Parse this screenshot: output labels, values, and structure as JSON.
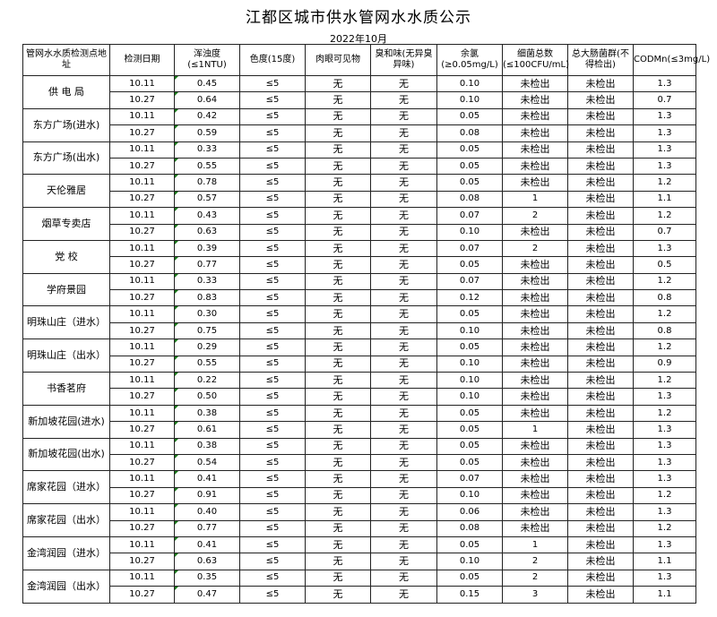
{
  "title": "江都区城市供水管网水水质公示",
  "subtitle": "2022年10月",
  "headers": [
    "管网水水质检测点地址",
    "检测日期",
    "浑浊度(≤1NTU)",
    "色度(15度)",
    "肉眼可见物",
    "臭和味(无异臭异味)",
    "余氯(≥0.05mg/L)",
    "细菌总数(≤100CFU/mL)",
    "总大肠菌群(不得检出)",
    "CODMn(≤3mg/L)"
  ],
  "indicator_color": "#1a7a1a",
  "sites": [
    {
      "name": "供 电 局",
      "rows": [
        [
          "10.11",
          "0.45",
          "≤5",
          "无",
          "无",
          "0.10",
          "未检出",
          "未检出",
          "1.3"
        ],
        [
          "10.27",
          "0.64",
          "≤5",
          "无",
          "无",
          "0.10",
          "未检出",
          "未检出",
          "0.7"
        ]
      ]
    },
    {
      "name": "东方广场(进水)",
      "rows": [
        [
          "10.11",
          "0.42",
          "≤5",
          "无",
          "无",
          "0.05",
          "未检出",
          "未检出",
          "1.3"
        ],
        [
          "10.27",
          "0.59",
          "≤5",
          "无",
          "无",
          "0.08",
          "未检出",
          "未检出",
          "1.3"
        ]
      ]
    },
    {
      "name": "东方广场(出水)",
      "rows": [
        [
          "10.11",
          "0.33",
          "≤5",
          "无",
          "无",
          "0.05",
          "未检出",
          "未检出",
          "1.3"
        ],
        [
          "10.27",
          "0.55",
          "≤5",
          "无",
          "无",
          "0.05",
          "未检出",
          "未检出",
          "1.3"
        ]
      ]
    },
    {
      "name": "天伦雅居",
      "rows": [
        [
          "10.11",
          "0.78",
          "≤5",
          "无",
          "无",
          "0.05",
          "未检出",
          "未检出",
          "1.2"
        ],
        [
          "10.27",
          "0.57",
          "≤5",
          "无",
          "无",
          "0.08",
          "1",
          "未检出",
          "1.1"
        ]
      ]
    },
    {
      "name": "烟草专卖店",
      "rows": [
        [
          "10.11",
          "0.43",
          "≤5",
          "无",
          "无",
          "0.07",
          "2",
          "未检出",
          "1.2"
        ],
        [
          "10.27",
          "0.63",
          "≤5",
          "无",
          "无",
          "0.10",
          "未检出",
          "未检出",
          "0.7"
        ]
      ]
    },
    {
      "name": "党  校",
      "rows": [
        [
          "10.11",
          "0.39",
          "≤5",
          "无",
          "无",
          "0.07",
          "2",
          "未检出",
          "1.3"
        ],
        [
          "10.27",
          "0.77",
          "≤5",
          "无",
          "无",
          "0.05",
          "未检出",
          "未检出",
          "0.5"
        ]
      ]
    },
    {
      "name": "学府景园",
      "rows": [
        [
          "10.11",
          "0.33",
          "≤5",
          "无",
          "无",
          "0.07",
          "未检出",
          "未检出",
          "1.2"
        ],
        [
          "10.27",
          "0.83",
          "≤5",
          "无",
          "无",
          "0.12",
          "未检出",
          "未检出",
          "0.8"
        ]
      ]
    },
    {
      "name": "明珠山庄（进水）",
      "rows": [
        [
          "10.11",
          "0.30",
          "≤5",
          "无",
          "无",
          "0.05",
          "未检出",
          "未检出",
          "1.2"
        ],
        [
          "10.27",
          "0.75",
          "≤5",
          "无",
          "无",
          "0.10",
          "未检出",
          "未检出",
          "0.8"
        ]
      ]
    },
    {
      "name": "明珠山庄（出水）",
      "rows": [
        [
          "10.11",
          "0.29",
          "≤5",
          "无",
          "无",
          "0.05",
          "未检出",
          "未检出",
          "1.2"
        ],
        [
          "10.27",
          "0.55",
          "≤5",
          "无",
          "无",
          "0.10",
          "未检出",
          "未检出",
          "0.9"
        ]
      ]
    },
    {
      "name": "书香茗府",
      "rows": [
        [
          "10.11",
          "0.22",
          "≤5",
          "无",
          "无",
          "0.10",
          "未检出",
          "未检出",
          "1.2"
        ],
        [
          "10.27",
          "0.50",
          "≤5",
          "无",
          "无",
          "0.10",
          "未检出",
          "未检出",
          "1.3"
        ]
      ]
    },
    {
      "name": "新加坡花园(进水)",
      "rows": [
        [
          "10.11",
          "0.38",
          "≤5",
          "无",
          "无",
          "0.05",
          "未检出",
          "未检出",
          "1.2"
        ],
        [
          "10.27",
          "0.61",
          "≤5",
          "无",
          "无",
          "0.05",
          "1",
          "未检出",
          "1.3"
        ]
      ]
    },
    {
      "name": "新加坡花园(出水)",
      "rows": [
        [
          "10.11",
          "0.38",
          "≤5",
          "无",
          "无",
          "0.05",
          "未检出",
          "未检出",
          "1.3"
        ],
        [
          "10.27",
          "0.54",
          "≤5",
          "无",
          "无",
          "0.05",
          "未检出",
          "未检出",
          "1.3"
        ]
      ]
    },
    {
      "name": "席家花园（进水）",
      "rows": [
        [
          "10.11",
          "0.41",
          "≤5",
          "无",
          "无",
          "0.07",
          "未检出",
          "未检出",
          "1.3"
        ],
        [
          "10.27",
          "0.91",
          "≤5",
          "无",
          "无",
          "0.10",
          "未检出",
          "未检出",
          "1.2"
        ]
      ]
    },
    {
      "name": "席家花园（出水）",
      "rows": [
        [
          "10.11",
          "0.40",
          "≤5",
          "无",
          "无",
          "0.06",
          "未检出",
          "未检出",
          "1.3"
        ],
        [
          "10.27",
          "0.77",
          "≤5",
          "无",
          "无",
          "0.08",
          "未检出",
          "未检出",
          "1.2"
        ]
      ]
    },
    {
      "name": "金湾润园（进水）",
      "rows": [
        [
          "10.11",
          "0.41",
          "≤5",
          "无",
          "无",
          "0.05",
          "1",
          "未检出",
          "1.3"
        ],
        [
          "10.27",
          "0.63",
          "≤5",
          "无",
          "无",
          "0.10",
          "2",
          "未检出",
          "1.1"
        ]
      ]
    },
    {
      "name": "金湾润园（出水）",
      "rows": [
        [
          "10.11",
          "0.35",
          "≤5",
          "无",
          "无",
          "0.05",
          "2",
          "未检出",
          "1.3"
        ],
        [
          "10.27",
          "0.47",
          "≤5",
          "无",
          "无",
          "0.15",
          "3",
          "未检出",
          "1.1"
        ]
      ]
    }
  ]
}
